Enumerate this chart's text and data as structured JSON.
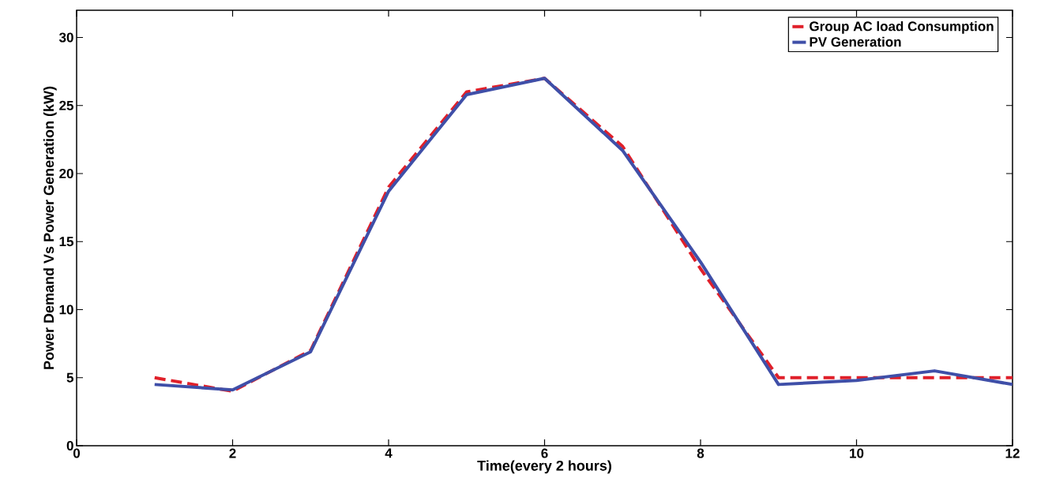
{
  "chart_data": {
    "type": "line",
    "xlabel": "Time(every 2 hours)",
    "ylabel": "Power Demand Vs Power Generation (kW)",
    "x": [
      1,
      2,
      3,
      4,
      5,
      6,
      7,
      8,
      9,
      10,
      11,
      12
    ],
    "series": [
      {
        "name": "Group AC load Consumption",
        "color": "#e0202a",
        "line_style": "dashed",
        "values": [
          5,
          4,
          7,
          19,
          26,
          27,
          22,
          13,
          5,
          5,
          5,
          5
        ]
      },
      {
        "name": "PV Generation",
        "color": "#3f4fa8",
        "line_style": "solid",
        "values": [
          4.5,
          4.1,
          6.9,
          18.7,
          25.8,
          27,
          21.7,
          13.5,
          4.5,
          4.8,
          5.5,
          4.5
        ]
      }
    ],
    "xlim": [
      0,
      12
    ],
    "ylim": [
      0,
      32
    ],
    "xticks": [
      0,
      2,
      4,
      6,
      8,
      10,
      12
    ],
    "yticks": [
      0,
      5,
      10,
      15,
      20,
      25,
      30
    ],
    "grid": false,
    "legend": "top right",
    "marker": "none"
  }
}
